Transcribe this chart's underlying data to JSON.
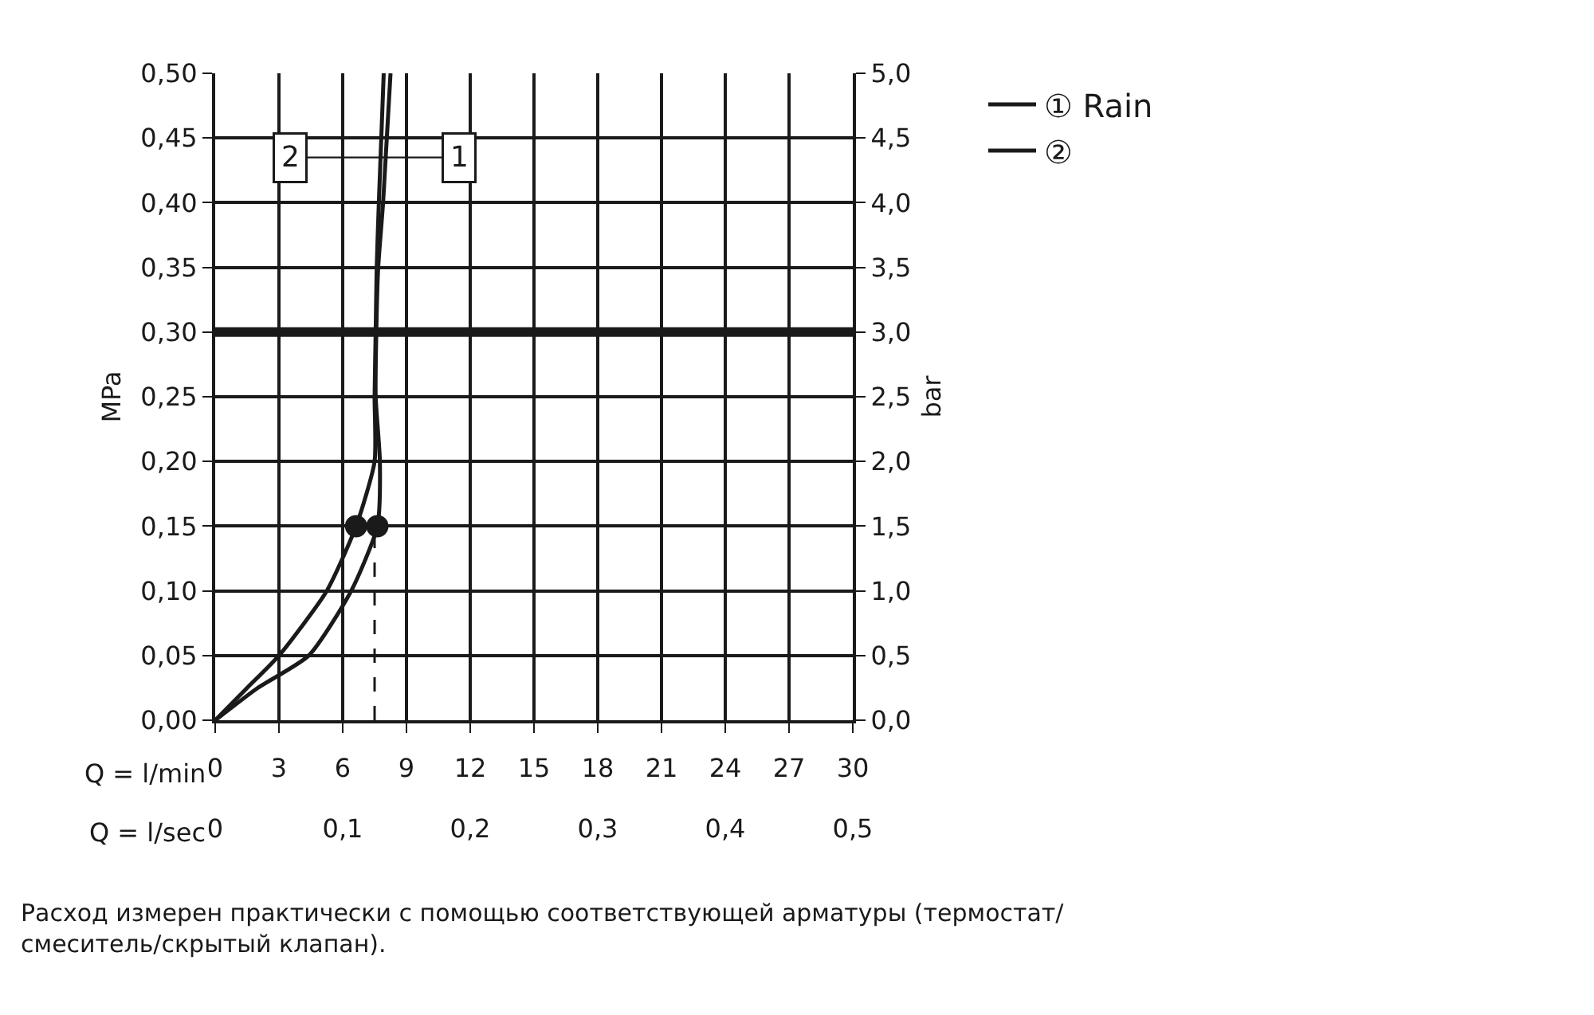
{
  "chart_data": {
    "type": "line",
    "xlabel": "Q = l/min",
    "x2label": "Q = l/sec",
    "ylabel": "MPa",
    "y2label": "bar",
    "xlim": [
      0,
      30
    ],
    "xticks": [
      0,
      3,
      6,
      9,
      12,
      15,
      18,
      21,
      24,
      27,
      30
    ],
    "x2lim": [
      0,
      0.5
    ],
    "x2ticks": [
      0,
      {
        "value": 0.1,
        "label": "0,1"
      },
      {
        "value": 0.2,
        "label": "0,2"
      },
      {
        "value": 0.3,
        "label": "0,3"
      },
      {
        "value": 0.4,
        "label": "0,4"
      },
      {
        "value": 0.5,
        "label": "0,5"
      }
    ],
    "ylim": [
      0,
      0.5
    ],
    "yticks": [
      {
        "value": 0,
        "label": "0,00"
      },
      {
        "value": 0.05,
        "label": "0,05"
      },
      {
        "value": 0.1,
        "label": "0,10"
      },
      {
        "value": 0.15,
        "label": "0,15"
      },
      {
        "value": 0.2,
        "label": "0,20"
      },
      {
        "value": 0.25,
        "label": "0,25"
      },
      {
        "value": 0.3,
        "label": "0,30"
      },
      {
        "value": 0.35,
        "label": "0,35"
      },
      {
        "value": 0.4,
        "label": "0,40"
      },
      {
        "value": 0.45,
        "label": "0,45"
      },
      {
        "value": 0.5,
        "label": "0,50"
      }
    ],
    "y2lim": [
      0,
      5
    ],
    "y2ticks": [
      {
        "value": 0,
        "label": "0,0"
      },
      {
        "value": 0.5,
        "label": "0,5"
      },
      {
        "value": 1,
        "label": "1,0"
      },
      {
        "value": 1.5,
        "label": "1,5"
      },
      {
        "value": 2,
        "label": "2,0"
      },
      {
        "value": 2.5,
        "label": "2,5"
      },
      {
        "value": 3,
        "label": "3,0"
      },
      {
        "value": 3.5,
        "label": "3,5"
      },
      {
        "value": 4,
        "label": "4,0"
      },
      {
        "value": 4.5,
        "label": "4,5"
      },
      {
        "value": 5,
        "label": "5,0"
      }
    ],
    "series": [
      {
        "name": "① Rain",
        "color": "#1a1a1a",
        "x": [
          0,
          2.0,
          4.4,
          6.4,
          7.63,
          7.75,
          7.55,
          7.58,
          7.67,
          7.9,
          8.25
        ],
        "values": [
          0,
          0.025,
          0.05,
          0.1,
          0.15,
          0.2,
          0.25,
          0.3,
          0.35,
          0.4,
          0.5
        ]
      },
      {
        "name": "②",
        "color": "#1a1a1a",
        "x": [
          0,
          1.5,
          3.0,
          5.25,
          6.63,
          7.5,
          7.5,
          7.55,
          7.6,
          7.7,
          7.93
        ],
        "values": [
          0,
          0.025,
          0.05,
          0.1,
          0.15,
          0.2,
          0.25,
          0.3,
          0.35,
          0.4,
          0.5
        ]
      },
      {
        "type": "scatter",
        "marker": "circle",
        "color": "#1a1a1a",
        "x": [
          6.63,
          7.63
        ],
        "values": [
          0.15,
          0.15
        ]
      },
      {
        "line_style": "dashed",
        "color": "#1a1a1a",
        "x": [
          7.5,
          7.5
        ],
        "values": [
          0,
          0.15
        ]
      }
    ],
    "ref_lines": [
      {
        "axis": "y",
        "value": 0.3,
        "color": "#1a1a1a"
      }
    ],
    "grid": true,
    "legend": "top right",
    "annotations": [
      {
        "text": "2",
        "x": 3.5,
        "y": 0.435
      },
      {
        "text": "1",
        "x": 11.5,
        "y": 0.435
      },
      "Расход измерен практически с помощью соответствующей арматуры (термостат/\nсмеситель/скрытый клапан)."
    ]
  }
}
